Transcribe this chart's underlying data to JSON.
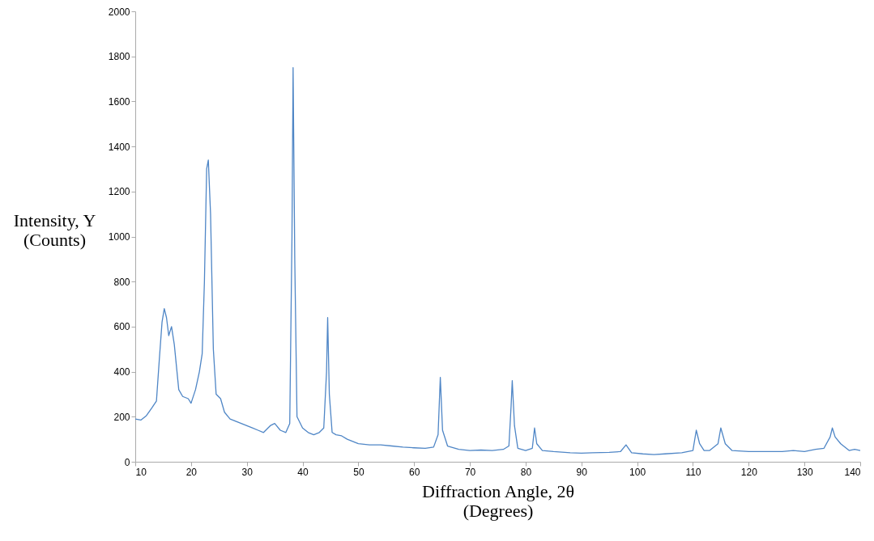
{
  "chart_data": {
    "type": "line",
    "xlabel": "Diffraction Angle, 2θ\n(Degrees)",
    "ylabel": "Intensity, Y\n(Counts)",
    "xlim": [
      10,
      140
    ],
    "xticks": [
      10,
      20,
      30,
      40,
      50,
      60,
      70,
      80,
      90,
      100,
      110,
      120,
      130,
      140
    ],
    "ylim": [
      0,
      2000
    ],
    "yticks": [
      0,
      200,
      400,
      600,
      800,
      1000,
      1200,
      1400,
      1600,
      1800,
      2000
    ],
    "grid": false,
    "marker": "none",
    "line_style": "solid",
    "series": [
      {
        "color": "#4f86c6",
        "x": [
          10,
          11,
          12,
          13,
          13.8,
          14.3,
          14.8,
          15.2,
          15.6,
          16,
          16.5,
          17,
          17.8,
          18.5,
          19.5,
          20,
          20.8,
          21.5,
          22,
          22.4,
          22.8,
          23.1,
          23.5,
          24,
          24.5,
          25.3,
          26,
          27,
          28,
          29,
          30,
          31,
          32,
          33,
          34.2,
          35,
          36,
          37,
          37.7,
          38.1,
          38.3,
          38.6,
          39,
          40,
          41,
          42,
          43,
          43.8,
          44.3,
          44.5,
          44.8,
          45.3,
          46,
          47,
          48,
          49,
          50,
          52,
          54,
          56,
          58,
          60,
          62,
          63.5,
          64.3,
          64.7,
          65.1,
          66,
          68,
          70,
          72,
          74,
          76,
          77,
          77.4,
          77.6,
          78,
          78.6,
          80,
          81.2,
          81.6,
          82,
          83,
          85,
          88,
          90,
          92,
          95,
          97,
          98,
          99,
          101,
          103,
          105,
          108,
          110,
          110.6,
          111.2,
          112,
          113,
          114.5,
          115,
          115.8,
          117,
          120,
          123,
          126,
          128,
          130,
          132,
          133.5,
          134.6,
          135,
          135.5,
          136.5,
          137.5,
          138,
          139,
          140
        ],
        "values": [
          190,
          185,
          205,
          240,
          270,
          450,
          620,
          680,
          640,
          560,
          600,
          520,
          320,
          290,
          280,
          260,
          320,
          400,
          480,
          800,
          1300,
          1340,
          1100,
          500,
          300,
          280,
          220,
          190,
          180,
          170,
          160,
          150,
          140,
          130,
          160,
          170,
          140,
          130,
          170,
          1000,
          1750,
          900,
          200,
          150,
          130,
          120,
          130,
          150,
          400,
          640,
          300,
          130,
          120,
          115,
          100,
          90,
          80,
          75,
          75,
          70,
          65,
          62,
          60,
          65,
          120,
          375,
          140,
          70,
          55,
          50,
          52,
          50,
          55,
          70,
          250,
          360,
          160,
          60,
          50,
          60,
          150,
          80,
          50,
          45,
          40,
          38,
          40,
          42,
          45,
          75,
          40,
          35,
          32,
          35,
          40,
          50,
          140,
          80,
          50,
          50,
          80,
          150,
          80,
          50,
          45,
          45,
          45,
          50,
          45,
          55,
          60,
          110,
          150,
          110,
          80,
          60,
          50,
          55,
          50
        ]
      }
    ]
  }
}
